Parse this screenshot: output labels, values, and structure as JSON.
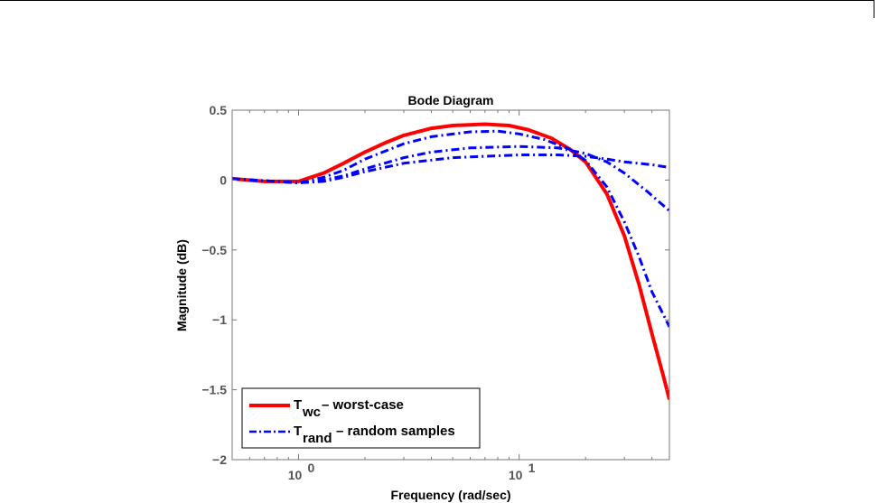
{
  "chart_data": {
    "type": "line",
    "title": "Bode Diagram",
    "xlabel": "Frequency  (rad/sec)",
    "ylabel": "Magnitude (dB)",
    "xscale": "log",
    "xlim": [
      0.5,
      48
    ],
    "ylim": [
      -2,
      0.5
    ],
    "yticks": [
      0.5,
      0,
      -0.5,
      -1,
      -1.5,
      -2
    ],
    "ytick_labels": [
      "0.5",
      "0",
      "−0.5",
      "−1",
      "−1.5",
      "−2"
    ],
    "xticks": [
      {
        "value": 1,
        "base": "10",
        "exp": "0"
      },
      {
        "value": 10,
        "base": "10",
        "exp": "1"
      }
    ],
    "grid": false,
    "legend_position": "bottom-left",
    "legend": [
      {
        "main": "T",
        "sub": "wc",
        "text": "– worst-case",
        "color": "#ff0000",
        "style": "solid"
      },
      {
        "main": "T",
        "sub": "rand",
        "text": "– random samples",
        "color": "#0000ff",
        "style": "dashdot"
      }
    ],
    "series": [
      {
        "name": "worst-case",
        "color": "#ff0000",
        "style": "solid",
        "x": [
          0.5,
          0.7,
          1,
          1.3,
          1.6,
          2,
          2.5,
          3,
          4,
          5,
          7,
          9,
          11,
          14,
          17,
          20,
          25,
          30,
          35,
          40,
          45,
          48
        ],
        "y": [
          0.01,
          -0.01,
          -0.01,
          0.05,
          0.12,
          0.2,
          0.27,
          0.32,
          0.37,
          0.39,
          0.4,
          0.39,
          0.36,
          0.3,
          0.22,
          0.13,
          -0.1,
          -0.4,
          -0.75,
          -1.1,
          -1.4,
          -1.57
        ]
      },
      {
        "name": "random sample 1",
        "color": "#0000ff",
        "style": "dashdot",
        "x": [
          0.5,
          1,
          1.3,
          1.6,
          2,
          3,
          4,
          6,
          8,
          10,
          13,
          17,
          20,
          25,
          30,
          35,
          40,
          48
        ],
        "y": [
          0.01,
          -0.02,
          0.02,
          0.07,
          0.15,
          0.26,
          0.31,
          0.345,
          0.35,
          0.33,
          0.29,
          0.22,
          0.14,
          -0.05,
          -0.3,
          -0.55,
          -0.8,
          -1.05
        ]
      },
      {
        "name": "random sample 2",
        "color": "#0000ff",
        "style": "dashdot",
        "x": [
          0.5,
          1,
          1.3,
          1.6,
          2,
          3,
          4,
          6,
          10,
          15,
          20,
          25,
          30,
          38,
          48
        ],
        "y": [
          0.01,
          -0.02,
          0,
          0.03,
          0.08,
          0.16,
          0.2,
          0.23,
          0.24,
          0.23,
          0.19,
          0.13,
          0.05,
          -0.08,
          -0.22
        ]
      },
      {
        "name": "random sample 3",
        "color": "#0000ff",
        "style": "dashdot",
        "x": [
          0.5,
          1,
          1.3,
          1.6,
          2,
          3,
          5,
          10,
          15,
          20,
          25,
          30,
          40,
          48
        ],
        "y": [
          0.01,
          -0.02,
          -0.01,
          0.02,
          0.06,
          0.12,
          0.16,
          0.18,
          0.18,
          0.17,
          0.15,
          0.13,
          0.11,
          0.09
        ]
      }
    ]
  }
}
